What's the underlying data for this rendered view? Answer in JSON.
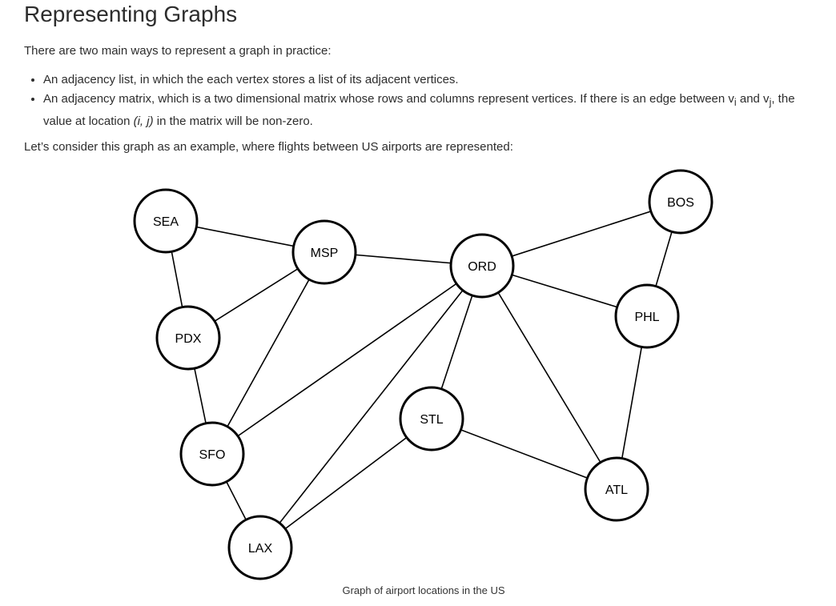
{
  "page": {
    "title": "Representing Graphs",
    "intro": "There are two main ways to represent a graph in practice:",
    "bullets": {
      "list": "An adjacency list, in which the each vertex stores a list of its adjacent vertices.",
      "matrix_a": "An adjacency matrix, which is a two dimensional matrix whose rows and columns represent vertices. If there is an edge between v",
      "sub_i": "i",
      "and": " and v",
      "sub_j": "j",
      "matrix_b": ", the value at location ",
      "loc": "(i, j)",
      "matrix_c": " in the matrix will be non-zero."
    },
    "consider": "Let’s consider this graph as an example, where flights between US airports are represented:",
    "caption": "Graph of airport locations in the US"
  },
  "graph": {
    "nodes": [
      "SEA",
      "MSP",
      "ORD",
      "BOS",
      "PDX",
      "PHL",
      "SFO",
      "STL",
      "ATL",
      "LAX"
    ],
    "edges": [
      [
        "SEA",
        "MSP"
      ],
      [
        "SEA",
        "PDX"
      ],
      [
        "MSP",
        "ORD"
      ],
      [
        "MSP",
        "PDX"
      ],
      [
        "MSP",
        "SFO"
      ],
      [
        "PDX",
        "SFO"
      ],
      [
        "SFO",
        "LAX"
      ],
      [
        "SFO",
        "ORD"
      ],
      [
        "LAX",
        "ORD"
      ],
      [
        "LAX",
        "STL"
      ],
      [
        "ORD",
        "BOS"
      ],
      [
        "ORD",
        "PHL"
      ],
      [
        "ORD",
        "STL"
      ],
      [
        "ORD",
        "ATL"
      ],
      [
        "BOS",
        "PHL"
      ],
      [
        "PHL",
        "ATL"
      ],
      [
        "STL",
        "ATL"
      ]
    ]
  }
}
